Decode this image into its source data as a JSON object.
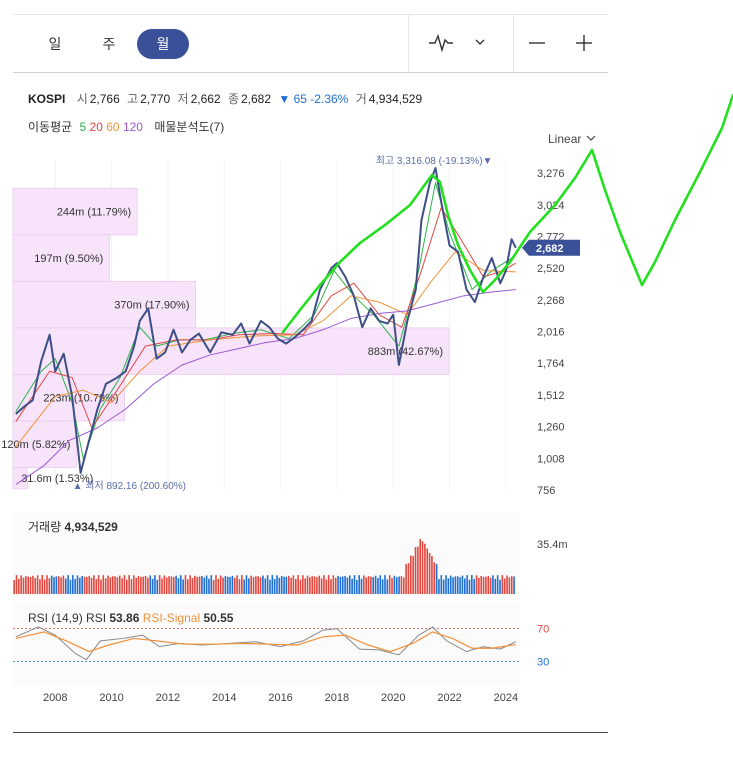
{
  "tabs": [
    {
      "label": "일",
      "active": false
    },
    {
      "label": "주",
      "active": false
    },
    {
      "label": "월",
      "active": true
    }
  ],
  "toolbar": {
    "chart_type_icon": "line-pulse-icon",
    "dropdown_icon": "chevron-down-icon",
    "zoom_out": "—",
    "zoom_in": "+"
  },
  "quote": {
    "symbol": "KOSPI",
    "open_label": "시",
    "open": "2,766",
    "high_label": "고",
    "high": "2,770",
    "low_label": "저",
    "low": "2,662",
    "close_label": "종",
    "close": "2,682",
    "change_arrow": "▼",
    "change": "65",
    "change_pct": "-2.36%",
    "volume_label": "거",
    "volume": "4,934,529"
  },
  "ma_legend": {
    "label": "이동평균",
    "periods": [
      "5",
      "20",
      "60",
      "120"
    ],
    "colors": [
      "#2db34a",
      "#e0473f",
      "#f0913a",
      "#9b59d0"
    ],
    "profile_label": "매물분석도(7)"
  },
  "scale_label": "Linear",
  "colors": {
    "price": "#3d4f86",
    "accent": "#3a5199",
    "down": "#1e6fd1",
    "volume_up": "#e0473f",
    "volume_down": "#1e6fd1",
    "rsi": "#888888",
    "rsi_signal": "#f0913a",
    "profile": "#f7e3fa",
    "annotation": "#22e01e"
  },
  "chart_data": {
    "type": "line",
    "x_range": [
      2006.5,
      2024.5
    ],
    "ylim": [
      756,
      3380
    ],
    "y_ticks": [
      "3,276",
      "3,024",
      "2,772",
      "2,520",
      "2,268",
      "2,016",
      "1,764",
      "1,512",
      "1,260",
      "1,008",
      "756"
    ],
    "x_ticks": [
      "2008",
      "2010",
      "2012",
      "2014",
      "2016",
      "2018",
      "2020",
      "2022",
      "2024"
    ],
    "current_price": {
      "value": 2682,
      "label": "2,682"
    },
    "high_annotation": {
      "label": "최고",
      "value": "3,316.08",
      "pct": "(-19.13%)",
      "arrow": "▼",
      "x": 2021.45,
      "y": 3316
    },
    "low_annotation": {
      "label": "최저",
      "value": "892.16",
      "pct": "(200.60%)",
      "arrow": "▲",
      "x": 2008.9,
      "y": 892
    },
    "price": [
      [
        2006.6,
        1360
      ],
      [
        2006.9,
        1420
      ],
      [
        2007.2,
        1470
      ],
      [
        2007.5,
        1780
      ],
      [
        2007.8,
        1990
      ],
      [
        2008.0,
        1700
      ],
      [
        2008.3,
        1840
      ],
      [
        2008.6,
        1500
      ],
      [
        2008.8,
        1100
      ],
      [
        2008.9,
        892
      ],
      [
        2009.2,
        1150
      ],
      [
        2009.5,
        1400
      ],
      [
        2009.8,
        1600
      ],
      [
        2010.2,
        1650
      ],
      [
        2010.5,
        1700
      ],
      [
        2010.8,
        1900
      ],
      [
        2011.0,
        2100
      ],
      [
        2011.3,
        2200
      ],
      [
        2011.6,
        1800
      ],
      [
        2011.9,
        1850
      ],
      [
        2012.2,
        2030
      ],
      [
        2012.5,
        1850
      ],
      [
        2012.8,
        1950
      ],
      [
        2013.1,
        2000
      ],
      [
        2013.5,
        1850
      ],
      [
        2013.9,
        2010
      ],
      [
        2014.3,
        1990
      ],
      [
        2014.6,
        2080
      ],
      [
        2014.9,
        1920
      ],
      [
        2015.3,
        2100
      ],
      [
        2015.6,
        2050
      ],
      [
        2015.9,
        1960
      ],
      [
        2016.2,
        1920
      ],
      [
        2016.5,
        1970
      ],
      [
        2016.8,
        2030
      ],
      [
        2017.1,
        2100
      ],
      [
        2017.4,
        2350
      ],
      [
        2017.8,
        2520
      ],
      [
        2018.0,
        2560
      ],
      [
        2018.3,
        2450
      ],
      [
        2018.6,
        2300
      ],
      [
        2018.9,
        2050
      ],
      [
        2019.2,
        2200
      ],
      [
        2019.5,
        2100
      ],
      [
        2019.8,
        2080
      ],
      [
        2020.0,
        2150
      ],
      [
        2020.2,
        1750
      ],
      [
        2020.5,
        2100
      ],
      [
        2020.8,
        2350
      ],
      [
        2021.0,
        2900
      ],
      [
        2021.3,
        3200
      ],
      [
        2021.5,
        3316
      ],
      [
        2021.7,
        3050
      ],
      [
        2022.0,
        2700
      ],
      [
        2022.3,
        2650
      ],
      [
        2022.6,
        2350
      ],
      [
        2022.9,
        2250
      ],
      [
        2023.2,
        2450
      ],
      [
        2023.5,
        2600
      ],
      [
        2023.8,
        2400
      ],
      [
        2024.0,
        2500
      ],
      [
        2024.2,
        2750
      ],
      [
        2024.35,
        2682
      ]
    ],
    "ma_series": [
      {
        "period": "5",
        "color": "#2db34a",
        "values": [
          [
            2006.6,
            1380
          ],
          [
            2007.5,
            1700
          ],
          [
            2008.0,
            1800
          ],
          [
            2008.6,
            1450
          ],
          [
            2009.0,
            1000
          ],
          [
            2009.6,
            1400
          ],
          [
            2010.3,
            1650
          ],
          [
            2011.0,
            2050
          ],
          [
            2011.6,
            1900
          ],
          [
            2012.4,
            1950
          ],
          [
            2013.3,
            1950
          ],
          [
            2014.3,
            2000
          ],
          [
            2015.3,
            2030
          ],
          [
            2016.3,
            1960
          ],
          [
            2017.2,
            2150
          ],
          [
            2017.9,
            2500
          ],
          [
            2018.6,
            2300
          ],
          [
            2019.3,
            2150
          ],
          [
            2020.2,
            1900
          ],
          [
            2020.9,
            2500
          ],
          [
            2021.5,
            3200
          ],
          [
            2022.0,
            2800
          ],
          [
            2022.8,
            2350
          ],
          [
            2023.5,
            2500
          ],
          [
            2024.35,
            2620
          ]
        ]
      },
      {
        "period": "20",
        "color": "#e0473f",
        "values": [
          [
            2006.6,
            1300
          ],
          [
            2007.8,
            1700
          ],
          [
            2008.6,
            1650
          ],
          [
            2009.3,
            1250
          ],
          [
            2010.2,
            1550
          ],
          [
            2011.2,
            1900
          ],
          [
            2012.3,
            1950
          ],
          [
            2013.5,
            1950
          ],
          [
            2014.5,
            1990
          ],
          [
            2015.8,
            2000
          ],
          [
            2016.8,
            1990
          ],
          [
            2017.8,
            2300
          ],
          [
            2018.6,
            2400
          ],
          [
            2019.5,
            2150
          ],
          [
            2020.3,
            2050
          ],
          [
            2021.0,
            2500
          ],
          [
            2021.7,
            3000
          ],
          [
            2022.4,
            2750
          ],
          [
            2023.2,
            2450
          ],
          [
            2023.9,
            2500
          ],
          [
            2024.35,
            2560
          ]
        ]
      },
      {
        "period": "60",
        "color": "#f0913a",
        "values": [
          [
            2006.6,
            1100
          ],
          [
            2008.0,
            1500
          ],
          [
            2009.0,
            1550
          ],
          [
            2010.0,
            1450
          ],
          [
            2011.0,
            1700
          ],
          [
            2012.0,
            1900
          ],
          [
            2013.5,
            1950
          ],
          [
            2015.0,
            1980
          ],
          [
            2016.5,
            1990
          ],
          [
            2017.5,
            2100
          ],
          [
            2018.5,
            2300
          ],
          [
            2019.5,
            2250
          ],
          [
            2020.5,
            2150
          ],
          [
            2021.3,
            2400
          ],
          [
            2022.2,
            2650
          ],
          [
            2023.2,
            2500
          ],
          [
            2024.35,
            2490
          ]
        ]
      },
      {
        "period": "120",
        "color": "#9b59d0",
        "values": [
          [
            2006.6,
            800
          ],
          [
            2007.6,
            950
          ],
          [
            2008.5,
            1150
          ],
          [
            2009.5,
            1250
          ],
          [
            2010.5,
            1400
          ],
          [
            2011.5,
            1600
          ],
          [
            2012.5,
            1750
          ],
          [
            2013.5,
            1830
          ],
          [
            2014.5,
            1880
          ],
          [
            2015.5,
            1930
          ],
          [
            2016.5,
            1960
          ],
          [
            2017.5,
            2030
          ],
          [
            2018.5,
            2120
          ],
          [
            2019.5,
            2160
          ],
          [
            2020.5,
            2180
          ],
          [
            2021.5,
            2240
          ],
          [
            2022.5,
            2300
          ],
          [
            2023.5,
            2330
          ],
          [
            2024.35,
            2350
          ]
        ]
      }
    ],
    "volume_profile": [
      {
        "label": "244m (11.79%)",
        "fraction": 0.245,
        "price_top": 3155,
        "price_bottom": 2785
      },
      {
        "label": "197m (9.50%)",
        "fraction": 0.19,
        "price_top": 2785,
        "price_bottom": 2415
      },
      {
        "label": "370m (17.90%)",
        "fraction": 0.36,
        "price_top": 2415,
        "price_bottom": 2045
      },
      {
        "label": "883m (42.67%)",
        "fraction": 0.86,
        "price_top": 2045,
        "price_bottom": 1675
      },
      {
        "label": "223m (10.79%)",
        "fraction": 0.22,
        "price_top": 1675,
        "price_bottom": 1305
      },
      {
        "label": "120m (5.82%)",
        "fraction": 0.125,
        "price_top": 1305,
        "price_bottom": 935
      },
      {
        "label": "31.6m (1.53%)",
        "fraction": 0.028,
        "price_top": 935,
        "price_bottom": 765
      }
    ],
    "volume": {
      "label": "거래량",
      "value": "4,934,529",
      "max_label": "35.4m",
      "max": 35.4
    },
    "rsi": {
      "label": "RSI (14,9)",
      "rsi_label": "RSI",
      "rsi_value": "53.86",
      "signal_label": "RSI-Signal",
      "signal_value": "50.55",
      "levels": [
        "70",
        "30"
      ],
      "rsi_values": [
        [
          2006.6,
          60
        ],
        [
          2007.4,
          72
        ],
        [
          2008.0,
          62
        ],
        [
          2008.7,
          40
        ],
        [
          2009.1,
          32
        ],
        [
          2009.6,
          55
        ],
        [
          2010.4,
          58
        ],
        [
          2011.1,
          62
        ],
        [
          2011.7,
          48
        ],
        [
          2012.4,
          52
        ],
        [
          2013.2,
          50
        ],
        [
          2014.2,
          52
        ],
        [
          2015.1,
          54
        ],
        [
          2016.0,
          48
        ],
        [
          2016.8,
          55
        ],
        [
          2017.5,
          68
        ],
        [
          2018.0,
          70
        ],
        [
          2018.8,
          45
        ],
        [
          2019.5,
          44
        ],
        [
          2020.2,
          38
        ],
        [
          2020.9,
          62
        ],
        [
          2021.4,
          72
        ],
        [
          2021.9,
          55
        ],
        [
          2022.6,
          42
        ],
        [
          2023.2,
          48
        ],
        [
          2023.8,
          45
        ],
        [
          2024.35,
          54
        ]
      ],
      "signal_values": [
        [
          2006.6,
          58
        ],
        [
          2007.6,
          66
        ],
        [
          2008.4,
          55
        ],
        [
          2009.2,
          42
        ],
        [
          2009.9,
          50
        ],
        [
          2010.8,
          58
        ],
        [
          2011.6,
          55
        ],
        [
          2012.6,
          51
        ],
        [
          2013.6,
          51
        ],
        [
          2014.6,
          52
        ],
        [
          2015.6,
          51
        ],
        [
          2016.6,
          50
        ],
        [
          2017.5,
          60
        ],
        [
          2018.3,
          62
        ],
        [
          2019.1,
          50
        ],
        [
          2019.9,
          42
        ],
        [
          2020.7,
          52
        ],
        [
          2021.4,
          66
        ],
        [
          2022.1,
          58
        ],
        [
          2022.8,
          46
        ],
        [
          2023.5,
          46
        ],
        [
          2024.35,
          50.5
        ]
      ]
    }
  }
}
